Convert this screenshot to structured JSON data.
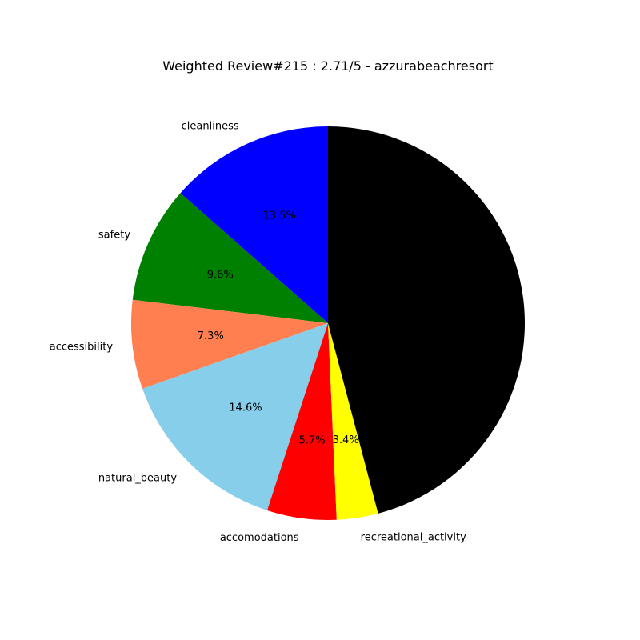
{
  "chart_data": {
    "type": "pie",
    "title": "Weighted Review#215 : 2.71/5 - azzurabeachresort",
    "start_angle_deg": 90,
    "direction": "counterclockwise",
    "slices": [
      {
        "label": "cleanliness",
        "value": 13.5,
        "pct_label": "13.5%",
        "color": "#0000ff"
      },
      {
        "label": "safety",
        "value": 9.6,
        "pct_label": "9.6%",
        "color": "#008000"
      },
      {
        "label": "accessibility",
        "value": 7.3,
        "pct_label": "7.3%",
        "color": "#ff7f50"
      },
      {
        "label": "natural_beauty",
        "value": 14.6,
        "pct_label": "14.6%",
        "color": "#87ceeb"
      },
      {
        "label": "accomodations",
        "value": 5.7,
        "pct_label": "5.7%",
        "color": "#ff0000"
      },
      {
        "label": "recreational_activity",
        "value": 3.4,
        "pct_label": "3.4%",
        "color": "#ffff00"
      },
      {
        "label": "",
        "value": 45.9,
        "pct_label": "",
        "color": "#000000"
      }
    ]
  }
}
